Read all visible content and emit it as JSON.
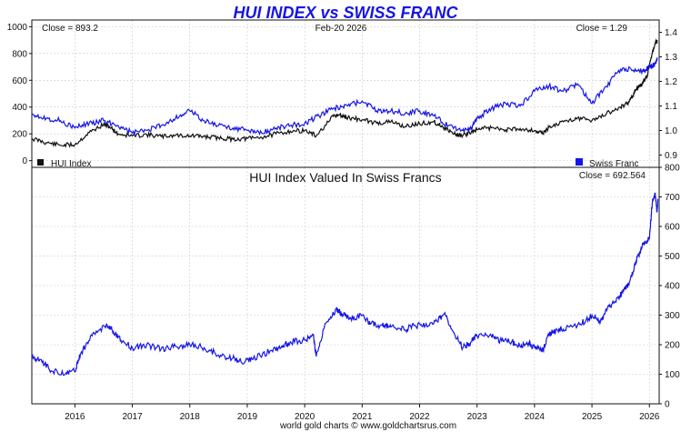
{
  "header": {
    "title": "HUI INDEX vs SWISS FRANC",
    "date": "Feb-20  2026",
    "footer": "world gold charts © www.goldchartsrus.com"
  },
  "chart_data": [
    {
      "type": "line",
      "title": "HUI INDEX vs SWISS FRANC",
      "x_range": [
        2015.25,
        2026.17
      ],
      "y_left_range": [
        -50,
        1050
      ],
      "y_right_range": [
        0.85,
        1.45
      ],
      "y_left_ticks": [
        0,
        200,
        400,
        600,
        800,
        1000
      ],
      "y_right_ticks": [
        0.9,
        1.0,
        1.1,
        1.2,
        1.3,
        1.4
      ],
      "y_left_tick_labels": [
        "0",
        "200",
        "400",
        "600",
        "800",
        "1000"
      ],
      "y_right_tick_labels": [
        "0.9",
        "1.0",
        "1.1",
        "1.2",
        "1.3",
        "1.4"
      ],
      "left_close": "Close = 893.2",
      "right_close": "Close = 1.29",
      "grid": true,
      "legend_placement": "bottom",
      "series": [
        {
          "name": "HUI Index",
          "axis": "left",
          "color": "#111111",
          "x": [
            2015.25,
            2015.5,
            2015.75,
            2016.0,
            2016.25,
            2016.5,
            2016.6,
            2016.75,
            2017.0,
            2017.25,
            2017.5,
            2017.75,
            2018.0,
            2018.25,
            2018.5,
            2018.75,
            2019.0,
            2019.25,
            2019.5,
            2019.75,
            2020.0,
            2020.2,
            2020.5,
            2020.6,
            2020.75,
            2021.0,
            2021.25,
            2021.5,
            2021.75,
            2022.0,
            2022.25,
            2022.4,
            2022.6,
            2022.75,
            2022.9,
            2023.0,
            2023.25,
            2023.5,
            2023.75,
            2024.0,
            2024.15,
            2024.25,
            2024.5,
            2024.75,
            2025.0,
            2025.25,
            2025.5,
            2025.65,
            2025.75,
            2025.85,
            2025.95,
            2026.05,
            2026.1,
            2026.14
          ],
          "y": [
            165,
            135,
            115,
            120,
            210,
            270,
            255,
            200,
            185,
            195,
            180,
            190,
            185,
            180,
            170,
            160,
            165,
            175,
            200,
            220,
            225,
            185,
            330,
            340,
            320,
            305,
            280,
            290,
            255,
            275,
            290,
            255,
            200,
            185,
            215,
            235,
            245,
            230,
            240,
            225,
            205,
            250,
            290,
            320,
            300,
            350,
            400,
            440,
            520,
            560,
            620,
            800,
            880,
            893
          ]
        },
        {
          "name": "Swiss Franc",
          "axis": "right",
          "color": "#1515e6",
          "x": [
            2015.25,
            2015.5,
            2015.75,
            2016.0,
            2016.25,
            2016.5,
            2016.75,
            2017.0,
            2017.25,
            2017.5,
            2017.75,
            2018.0,
            2018.25,
            2018.5,
            2018.75,
            2019.0,
            2019.25,
            2019.5,
            2019.75,
            2020.0,
            2020.25,
            2020.5,
            2020.75,
            2021.0,
            2021.25,
            2021.5,
            2021.75,
            2022.0,
            2022.25,
            2022.5,
            2022.75,
            2022.9,
            2023.0,
            2023.25,
            2023.5,
            2023.75,
            2024.0,
            2024.25,
            2024.5,
            2024.75,
            2025.0,
            2025.25,
            2025.5,
            2025.75,
            2025.9,
            2026.0,
            2026.1,
            2026.14
          ],
          "y": [
            1.07,
            1.05,
            1.04,
            1.01,
            1.03,
            1.04,
            1.02,
            0.99,
            1.0,
            1.02,
            1.05,
            1.08,
            1.04,
            1.02,
            1.01,
            1.0,
            0.99,
            1.01,
            1.02,
            1.03,
            1.06,
            1.09,
            1.1,
            1.12,
            1.08,
            1.08,
            1.07,
            1.08,
            1.06,
            1.02,
            1.0,
            1.01,
            1.05,
            1.09,
            1.11,
            1.1,
            1.16,
            1.18,
            1.16,
            1.19,
            1.11,
            1.18,
            1.25,
            1.25,
            1.24,
            1.26,
            1.27,
            1.29
          ]
        }
      ]
    },
    {
      "type": "line",
      "title": "HUI Index Valued In Swiss Francs",
      "close": "Close = 692.564",
      "x_range": [
        2015.25,
        2026.17
      ],
      "x_ticks": [
        2016,
        2017,
        2018,
        2019,
        2020,
        2021,
        2022,
        2023,
        2024,
        2025,
        2026
      ],
      "x_tick_labels": [
        "2016",
        "2017",
        "2018",
        "2019",
        "2020",
        "2021",
        "2022",
        "2023",
        "2024",
        "2025",
        "2026"
      ],
      "y_range": [
        0,
        800
      ],
      "y_ticks": [
        0,
        100,
        200,
        300,
        400,
        500,
        600,
        700,
        800
      ],
      "y_tick_labels": [
        "0",
        "100",
        "200",
        "300",
        "400",
        "500",
        "600",
        "700",
        "800"
      ],
      "grid": true,
      "series": [
        {
          "color": "#1515e6",
          "x": [
            2015.25,
            2015.4,
            2015.6,
            2015.85,
            2016.0,
            2016.1,
            2016.3,
            2016.55,
            2016.65,
            2016.8,
            2017.0,
            2017.25,
            2017.5,
            2017.75,
            2018.0,
            2018.25,
            2018.5,
            2018.75,
            2018.9,
            2019.1,
            2019.4,
            2019.6,
            2019.75,
            2020.0,
            2020.15,
            2020.2,
            2020.35,
            2020.55,
            2020.65,
            2020.8,
            2021.0,
            2021.15,
            2021.35,
            2021.5,
            2021.75,
            2021.9,
            2022.1,
            2022.3,
            2022.45,
            2022.6,
            2022.75,
            2022.9,
            2023.0,
            2023.25,
            2023.4,
            2023.6,
            2023.75,
            2023.9,
            2024.0,
            2024.15,
            2024.25,
            2024.4,
            2024.6,
            2024.8,
            2025.0,
            2025.15,
            2025.3,
            2025.45,
            2025.55,
            2025.65,
            2025.75,
            2025.8,
            2025.9,
            2026.0,
            2026.05,
            2026.1,
            2026.13,
            2026.15
          ],
          "y": [
            160,
            150,
            110,
            105,
            110,
            170,
            230,
            270,
            250,
            215,
            190,
            200,
            185,
            195,
            200,
            190,
            165,
            155,
            140,
            150,
            180,
            195,
            210,
            215,
            230,
            160,
            270,
            320,
            305,
            290,
            300,
            270,
            265,
            260,
            250,
            265,
            265,
            280,
            300,
            240,
            190,
            210,
            230,
            230,
            215,
            210,
            195,
            205,
            190,
            180,
            235,
            250,
            260,
            270,
            300,
            280,
            330,
            360,
            380,
            410,
            470,
            500,
            540,
            560,
            680,
            710,
            650,
            692
          ]
        }
      ]
    }
  ]
}
